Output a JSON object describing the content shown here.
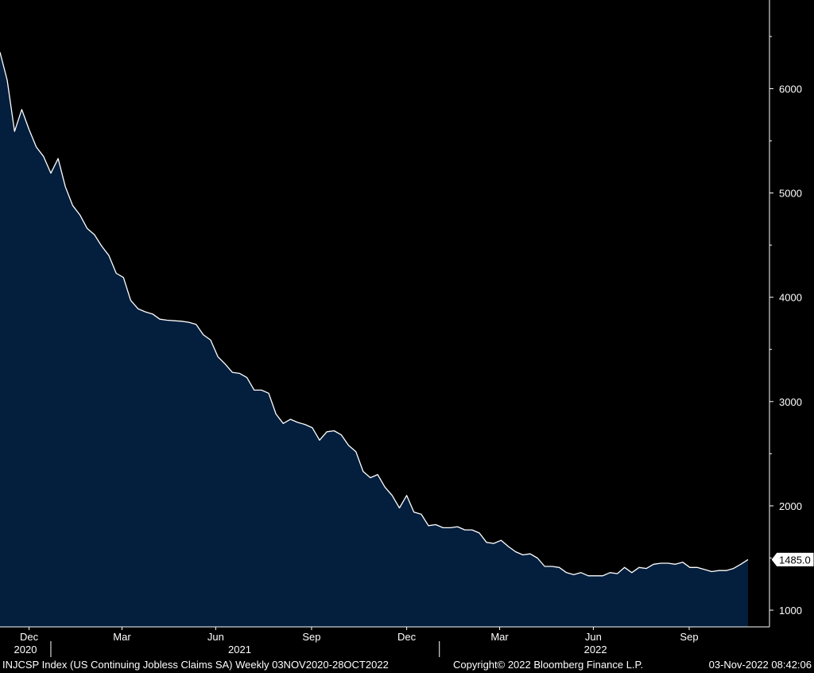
{
  "chart_data": {
    "type": "area",
    "series": [
      {
        "values": [
          [
            0,
            6350
          ],
          [
            1,
            6080
          ],
          [
            2,
            5590
          ],
          [
            3,
            5800
          ],
          [
            4,
            5610
          ],
          [
            5,
            5440
          ],
          [
            6,
            5350
          ],
          [
            7,
            5190
          ],
          [
            8,
            5330
          ],
          [
            9,
            5060
          ],
          [
            10,
            4880
          ],
          [
            11,
            4790
          ],
          [
            12,
            4660
          ],
          [
            13,
            4600
          ],
          [
            14,
            4490
          ],
          [
            15,
            4400
          ],
          [
            16,
            4230
          ],
          [
            17,
            4190
          ],
          [
            18,
            3970
          ],
          [
            19,
            3890
          ],
          [
            20,
            3860
          ],
          [
            21,
            3840
          ],
          [
            22,
            3790
          ],
          [
            23,
            3780
          ],
          [
            24,
            3775
          ],
          [
            25,
            3770
          ],
          [
            26,
            3760
          ],
          [
            27,
            3740
          ],
          [
            28,
            3640
          ],
          [
            29,
            3590
          ],
          [
            30,
            3430
          ],
          [
            31,
            3360
          ],
          [
            32,
            3280
          ],
          [
            33,
            3270
          ],
          [
            34,
            3230
          ],
          [
            35,
            3110
          ],
          [
            36,
            3110
          ],
          [
            37,
            3080
          ],
          [
            38,
            2880
          ],
          [
            39,
            2790
          ],
          [
            40,
            2830
          ],
          [
            41,
            2800
          ],
          [
            42,
            2780
          ],
          [
            43,
            2750
          ],
          [
            44,
            2630
          ],
          [
            45,
            2710
          ],
          [
            46,
            2720
          ],
          [
            47,
            2680
          ],
          [
            48,
            2580
          ],
          [
            49,
            2520
          ],
          [
            50,
            2330
          ],
          [
            51,
            2270
          ],
          [
            52,
            2300
          ],
          [
            53,
            2180
          ],
          [
            54,
            2100
          ],
          [
            55,
            1980
          ],
          [
            56,
            2100
          ],
          [
            57,
            1940
          ],
          [
            58,
            1920
          ],
          [
            59,
            1810
          ],
          [
            60,
            1820
          ],
          [
            61,
            1790
          ],
          [
            62,
            1790
          ],
          [
            63,
            1800
          ],
          [
            64,
            1770
          ],
          [
            65,
            1770
          ],
          [
            66,
            1740
          ],
          [
            67,
            1650
          ],
          [
            68,
            1640
          ],
          [
            69,
            1670
          ],
          [
            70,
            1610
          ],
          [
            71,
            1560
          ],
          [
            72,
            1530
          ],
          [
            73,
            1540
          ],
          [
            74,
            1500
          ],
          [
            75,
            1420
          ],
          [
            76,
            1420
          ],
          [
            77,
            1410
          ],
          [
            78,
            1360
          ],
          [
            79,
            1340
          ],
          [
            80,
            1360
          ],
          [
            81,
            1330
          ],
          [
            82,
            1330
          ],
          [
            83,
            1330
          ],
          [
            84,
            1360
          ],
          [
            85,
            1350
          ],
          [
            86,
            1410
          ],
          [
            87,
            1360
          ],
          [
            88,
            1410
          ],
          [
            89,
            1400
          ],
          [
            90,
            1440
          ],
          [
            91,
            1450
          ],
          [
            92,
            1450
          ],
          [
            93,
            1440
          ],
          [
            94,
            1460
          ],
          [
            95,
            1410
          ],
          [
            96,
            1410
          ],
          [
            97,
            1390
          ],
          [
            98,
            1370
          ],
          [
            99,
            1380
          ],
          [
            100,
            1380
          ],
          [
            101,
            1400
          ],
          [
            102,
            1440
          ],
          [
            103,
            1485
          ]
        ]
      }
    ],
    "last_value_label": "1485.0",
    "yticks": [
      1000,
      2000,
      3000,
      4000,
      5000,
      6000
    ],
    "ylim": [
      840,
      6850
    ],
    "xlim": [
      0,
      103
    ],
    "month_ticks": [
      {
        "label": "Dec",
        "x": 4.0
      },
      {
        "label": "Mar",
        "x": 16.8
      },
      {
        "label": "Jun",
        "x": 29.7
      },
      {
        "label": "Sep",
        "x": 42.9
      },
      {
        "label": "Dec",
        "x": 56.0
      },
      {
        "label": "Mar",
        "x": 68.8
      },
      {
        "label": "Jun",
        "x": 81.7
      },
      {
        "label": "Sep",
        "x": 94.9
      }
    ],
    "year_labels": [
      {
        "label": "2020",
        "x": 3.5
      },
      {
        "label": "2021",
        "x": 33.0
      },
      {
        "label": "2022",
        "x": 82.0
      }
    ],
    "year_separators": [
      7.0,
      60.5
    ],
    "colors": {
      "background": "#000000",
      "area_fill": "#041e3d",
      "line": "#ffffff",
      "axis": "#ffffff",
      "text": "#ffffff"
    }
  },
  "footer": {
    "series_info": "INJCSP Index (US Continuing Jobless Claims SA)  Weekly 03NOV2020-28OCT2022",
    "copyright": "Copyright© 2022 Bloomberg Finance L.P.",
    "timestamp": "03-Nov-2022 08:42:06"
  }
}
